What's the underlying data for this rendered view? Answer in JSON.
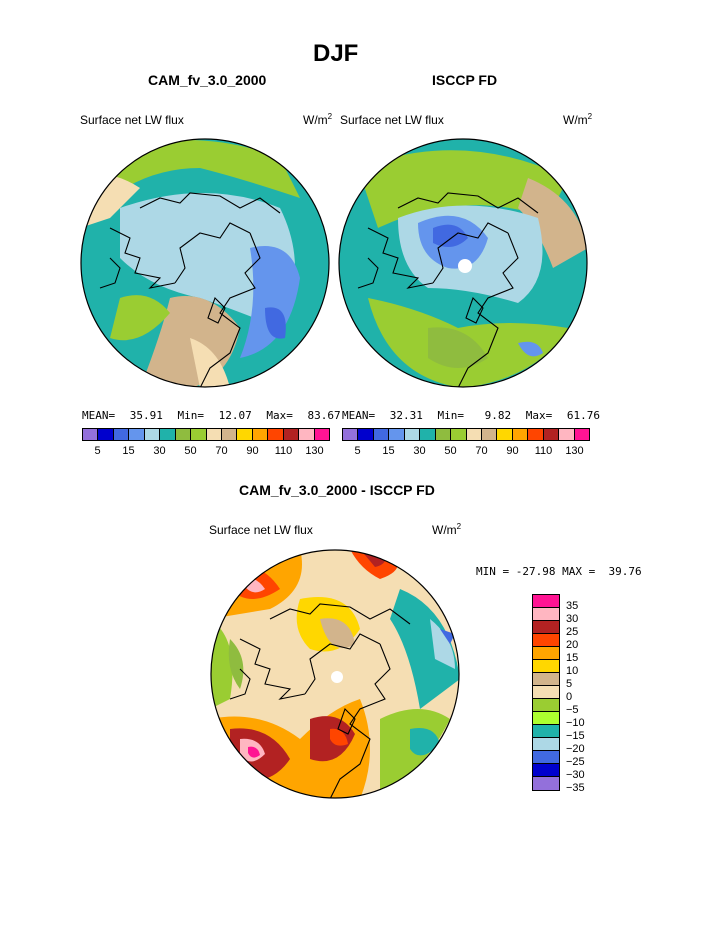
{
  "figure": {
    "season": "DJF",
    "units_base": "W/m",
    "units_sup": "2"
  },
  "panels": {
    "left": {
      "title": "CAM_fv_3.0_2000",
      "field": "Surface net LW flux",
      "stats": {
        "mean_label": "MEAN=",
        "mean": "35.91",
        "min_label": "Min=",
        "min": "12.07",
        "max_label": "Max=",
        "max": "83.67"
      }
    },
    "right": {
      "title": "ISCCP FD",
      "field": "Surface net LW flux",
      "stats": {
        "mean_label": "MEAN=",
        "mean": "32.31",
        "min_label": "Min=",
        "min": "9.82",
        "max_label": "Max=",
        "max": "61.76"
      }
    },
    "diff": {
      "title": "CAM_fv_3.0_2000 - ISCCP FD",
      "field": "Surface net LW flux",
      "minmax": "MIN = -27.98 MAX =  39.76"
    }
  },
  "colorbar_top": {
    "colors": [
      "#9370db",
      "#0000cd",
      "#4169e1",
      "#6495ed",
      "#add8e6",
      "#20b2aa",
      "#8fbc3f",
      "#9acd32",
      "#f5deb3",
      "#d2b48c",
      "#ffd700",
      "#ffa500",
      "#ff4500",
      "#b22222",
      "#ffb6c1",
      "#ff1493"
    ],
    "ticks": [
      "5",
      "15",
      "30",
      "50",
      "70",
      "90",
      "110",
      "130"
    ]
  },
  "colorbar_diff": {
    "colors": [
      "#ff1493",
      "#ffb6c1",
      "#b22222",
      "#ff4500",
      "#ffa500",
      "#ffd700",
      "#d2b48c",
      "#f5deb3",
      "#9acd32",
      "#adff2f",
      "#20b2aa",
      "#add8e6",
      "#4169e1",
      "#0000cd",
      "#9370db"
    ],
    "ticks": [
      "35",
      "30",
      "25",
      "20",
      "15",
      "10",
      "5",
      "0",
      "−5",
      "−10",
      "−15",
      "−20",
      "−25",
      "−30",
      "−35"
    ]
  }
}
